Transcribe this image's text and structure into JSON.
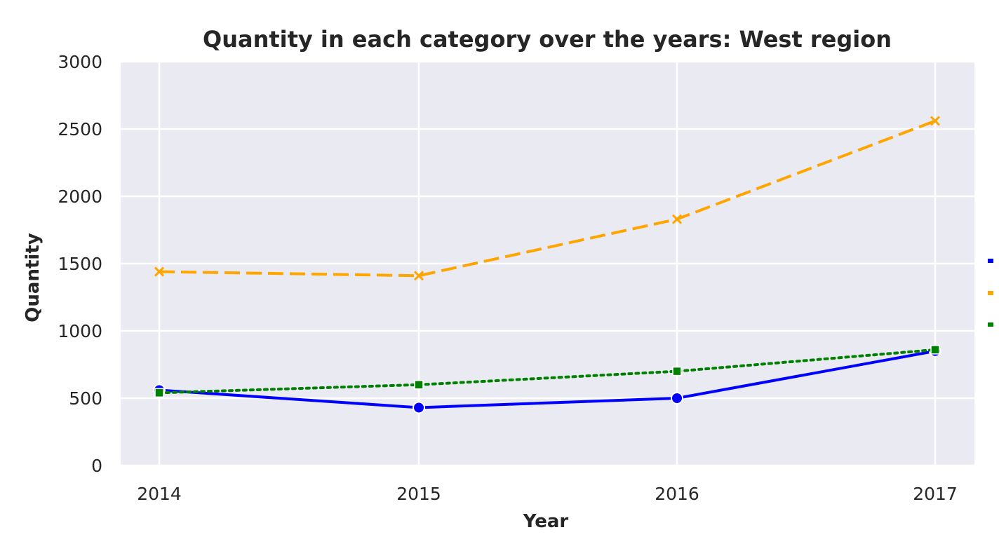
{
  "chart_data": {
    "type": "line",
    "title": "Quantity in each category over the years: West region",
    "xlabel": "Year",
    "ylabel": "Quantity",
    "x": [
      "2014",
      "2015",
      "2016",
      "2017"
    ],
    "y_ticks": [
      "0",
      "500",
      "1000",
      "1500",
      "2000",
      "2500",
      "3000"
    ],
    "ylim": [
      0,
      3000
    ],
    "grid": true,
    "legend": "right, cut off",
    "series": [
      {
        "values": [
          560,
          430,
          500,
          850
        ],
        "color": "#0000ff",
        "line_style": "solid",
        "marker": "circle"
      },
      {
        "values": [
          1440,
          1410,
          1830,
          2560
        ],
        "color": "#ffa500",
        "line_style": "dashed",
        "marker": "x"
      },
      {
        "values": [
          540,
          600,
          700,
          860
        ],
        "color": "#008000",
        "line_style": "dotted",
        "marker": "square"
      }
    ]
  }
}
